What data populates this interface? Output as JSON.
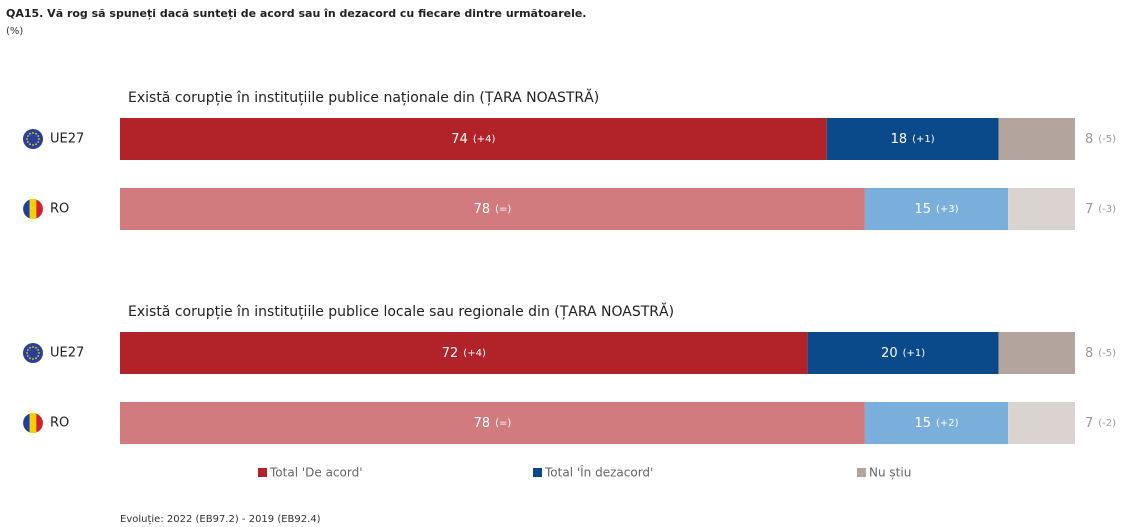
{
  "title": "QA15. Vă rog să spuneți dacă sunteți de acord sau în dezacord cu fiecare dintre următoarele.",
  "subtitle": "(%)",
  "legend": [
    {
      "name": "Total 'De acord'",
      "color": "#b22329"
    },
    {
      "name": "Total 'În dezacord'",
      "color": "#0a4a8a"
    },
    {
      "name": "Nu știu",
      "color": "#b4a49e"
    }
  ],
  "footnote": "Evoluție: 2022 (EB97.2) - 2019 (EB92.4)",
  "chart_data": [
    {
      "type": "bar",
      "orientation": "horizontal",
      "stacked": true,
      "title": "Există corupție în instituțiile publice naționale din (ȚARA NOASTRĂ)",
      "categories": [
        "UE27",
        "RO"
      ],
      "xlim": [
        0,
        100
      ],
      "series": [
        {
          "values": [
            74,
            78
          ],
          "changes": [
            "(+4)",
            "(=)"
          ],
          "colors": [
            "#b22329",
            "#d27b7f"
          ]
        },
        {
          "values": [
            18,
            15
          ],
          "changes": [
            "(+1)",
            "(+3)"
          ],
          "colors": [
            "#0a4a8a",
            "#7aaedb"
          ]
        },
        {
          "values": [
            8,
            7
          ],
          "changes": [
            "(-5)",
            "(-3)"
          ],
          "colors": [
            "#b4a49e",
            "#dbd3d0"
          ]
        }
      ]
    },
    {
      "type": "bar",
      "orientation": "horizontal",
      "stacked": true,
      "title": "Există corupție în instituțiile publice locale sau regionale din (ȚARA NOASTRĂ)",
      "categories": [
        "UE27",
        "RO"
      ],
      "xlim": [
        0,
        100
      ],
      "series": [
        {
          "values": [
            72,
            78
          ],
          "changes": [
            "(+4)",
            "(=)"
          ],
          "colors": [
            "#b22329",
            "#d27b7f"
          ]
        },
        {
          "values": [
            20,
            15
          ],
          "changes": [
            "(+1)",
            "(+2)"
          ],
          "colors": [
            "#0a4a8a",
            "#7aaedb"
          ]
        },
        {
          "values": [
            8,
            7
          ],
          "changes": [
            "(-5)",
            "(-2)"
          ],
          "colors": [
            "#b4a49e",
            "#dbd3d0"
          ]
        }
      ]
    }
  ]
}
